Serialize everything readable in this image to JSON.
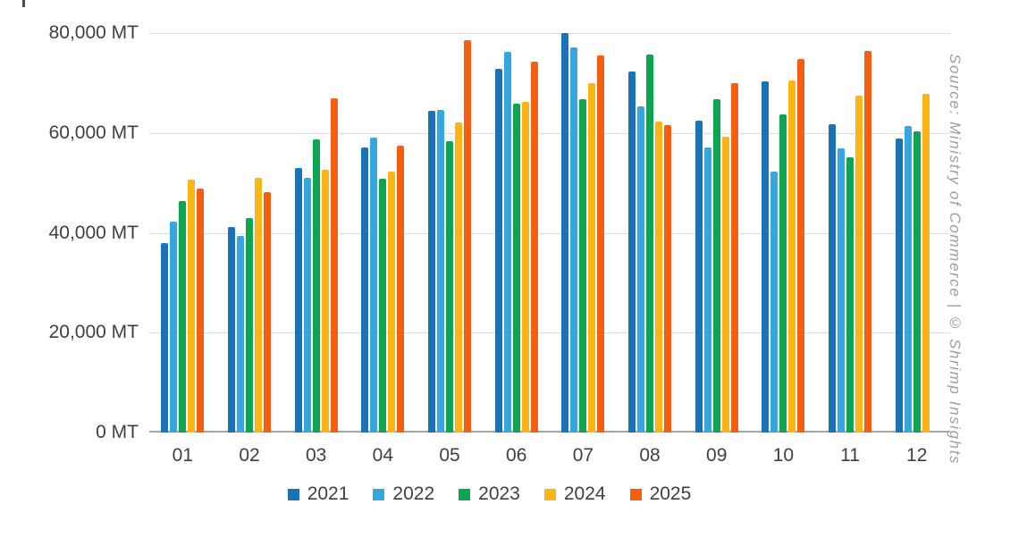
{
  "source_note": "Source: Ministry of Commerce | © Shrimp Insights",
  "chart_data": {
    "type": "bar",
    "title": "",
    "unit": "MT",
    "grid": "horizontal",
    "legend_position": "bottom",
    "ylim": [
      0,
      80000
    ],
    "ytick_values": [
      0,
      20000,
      40000,
      60000,
      80000
    ],
    "ytick_labels": [
      "0 MT",
      "20,000 MT",
      "40,000 MT",
      "60,000 MT",
      "80,000 MT"
    ],
    "categories": [
      "01",
      "02",
      "03",
      "04",
      "05",
      "06",
      "07",
      "08",
      "09",
      "10",
      "11",
      "12"
    ],
    "series": [
      {
        "name": "2021",
        "color": "#1a73b8",
        "values": [
          38000,
          41200,
          53000,
          57100,
          64400,
          72900,
          80000,
          72400,
          62500,
          70400,
          61700,
          58900
        ]
      },
      {
        "name": "2022",
        "color": "#35a7e0",
        "values": [
          42200,
          39300,
          51100,
          59000,
          64700,
          76200,
          77100,
          65300,
          57100,
          52300,
          56900,
          61400
        ]
      },
      {
        "name": "2023",
        "color": "#0ba64f",
        "values": [
          46400,
          42900,
          58800,
          50800,
          58400,
          65900,
          66800,
          75700,
          66800,
          63800,
          55200,
          60300
        ]
      },
      {
        "name": "2024",
        "color": "#fcb515",
        "values": [
          50700,
          51000,
          52600,
          52200,
          62200,
          66200,
          69900,
          62300,
          59200,
          70500,
          67400,
          67800
        ]
      },
      {
        "name": "2025",
        "color": "#f85e10",
        "values": [
          48800,
          48200,
          67000,
          57500,
          78600,
          74200,
          75500,
          61600,
          70000,
          74900,
          76500,
          null
        ]
      }
    ]
  }
}
